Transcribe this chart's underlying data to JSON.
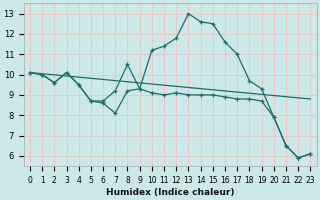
{
  "xlabel": "Humidex (Indice chaleur)",
  "bg_color": "#cde8e8",
  "grid_color": "#e8c8c8",
  "line_color": "#1a6e6a",
  "xlim": [
    -0.5,
    23.5
  ],
  "ylim": [
    5.5,
    13.5
  ],
  "xticks": [
    0,
    1,
    2,
    3,
    4,
    5,
    6,
    7,
    8,
    9,
    10,
    11,
    12,
    13,
    14,
    15,
    16,
    17,
    18,
    19,
    20,
    21,
    22,
    23
  ],
  "yticks": [
    6,
    7,
    8,
    9,
    10,
    11,
    12,
    13
  ],
  "line1_x": [
    0,
    1,
    2,
    3,
    4,
    5,
    6,
    7,
    8,
    9,
    10,
    11,
    12,
    13,
    14,
    15,
    16,
    17,
    18,
    19,
    20,
    21,
    22,
    23
  ],
  "line1_y": [
    10.1,
    10.0,
    9.6,
    10.1,
    9.5,
    8.7,
    8.7,
    9.2,
    10.5,
    9.3,
    11.2,
    11.4,
    11.8,
    13.0,
    12.6,
    12.5,
    11.6,
    11.0,
    9.7,
    9.3,
    7.9,
    6.5,
    5.9,
    6.1
  ],
  "line2_x": [
    0,
    23
  ],
  "line2_y": [
    10.1,
    8.8
  ],
  "line3_x": [
    0,
    1,
    2,
    3,
    4,
    5,
    6,
    7,
    8,
    9,
    10,
    11,
    12,
    13,
    14,
    15,
    16,
    17,
    18,
    19,
    20,
    21,
    22,
    23
  ],
  "line3_y": [
    10.1,
    10.0,
    9.6,
    10.1,
    9.5,
    8.7,
    8.6,
    8.1,
    9.2,
    9.3,
    9.1,
    9.0,
    9.1,
    9.0,
    9.0,
    9.0,
    8.9,
    8.8,
    8.8,
    8.7,
    7.9,
    6.5,
    5.9,
    6.1
  ]
}
